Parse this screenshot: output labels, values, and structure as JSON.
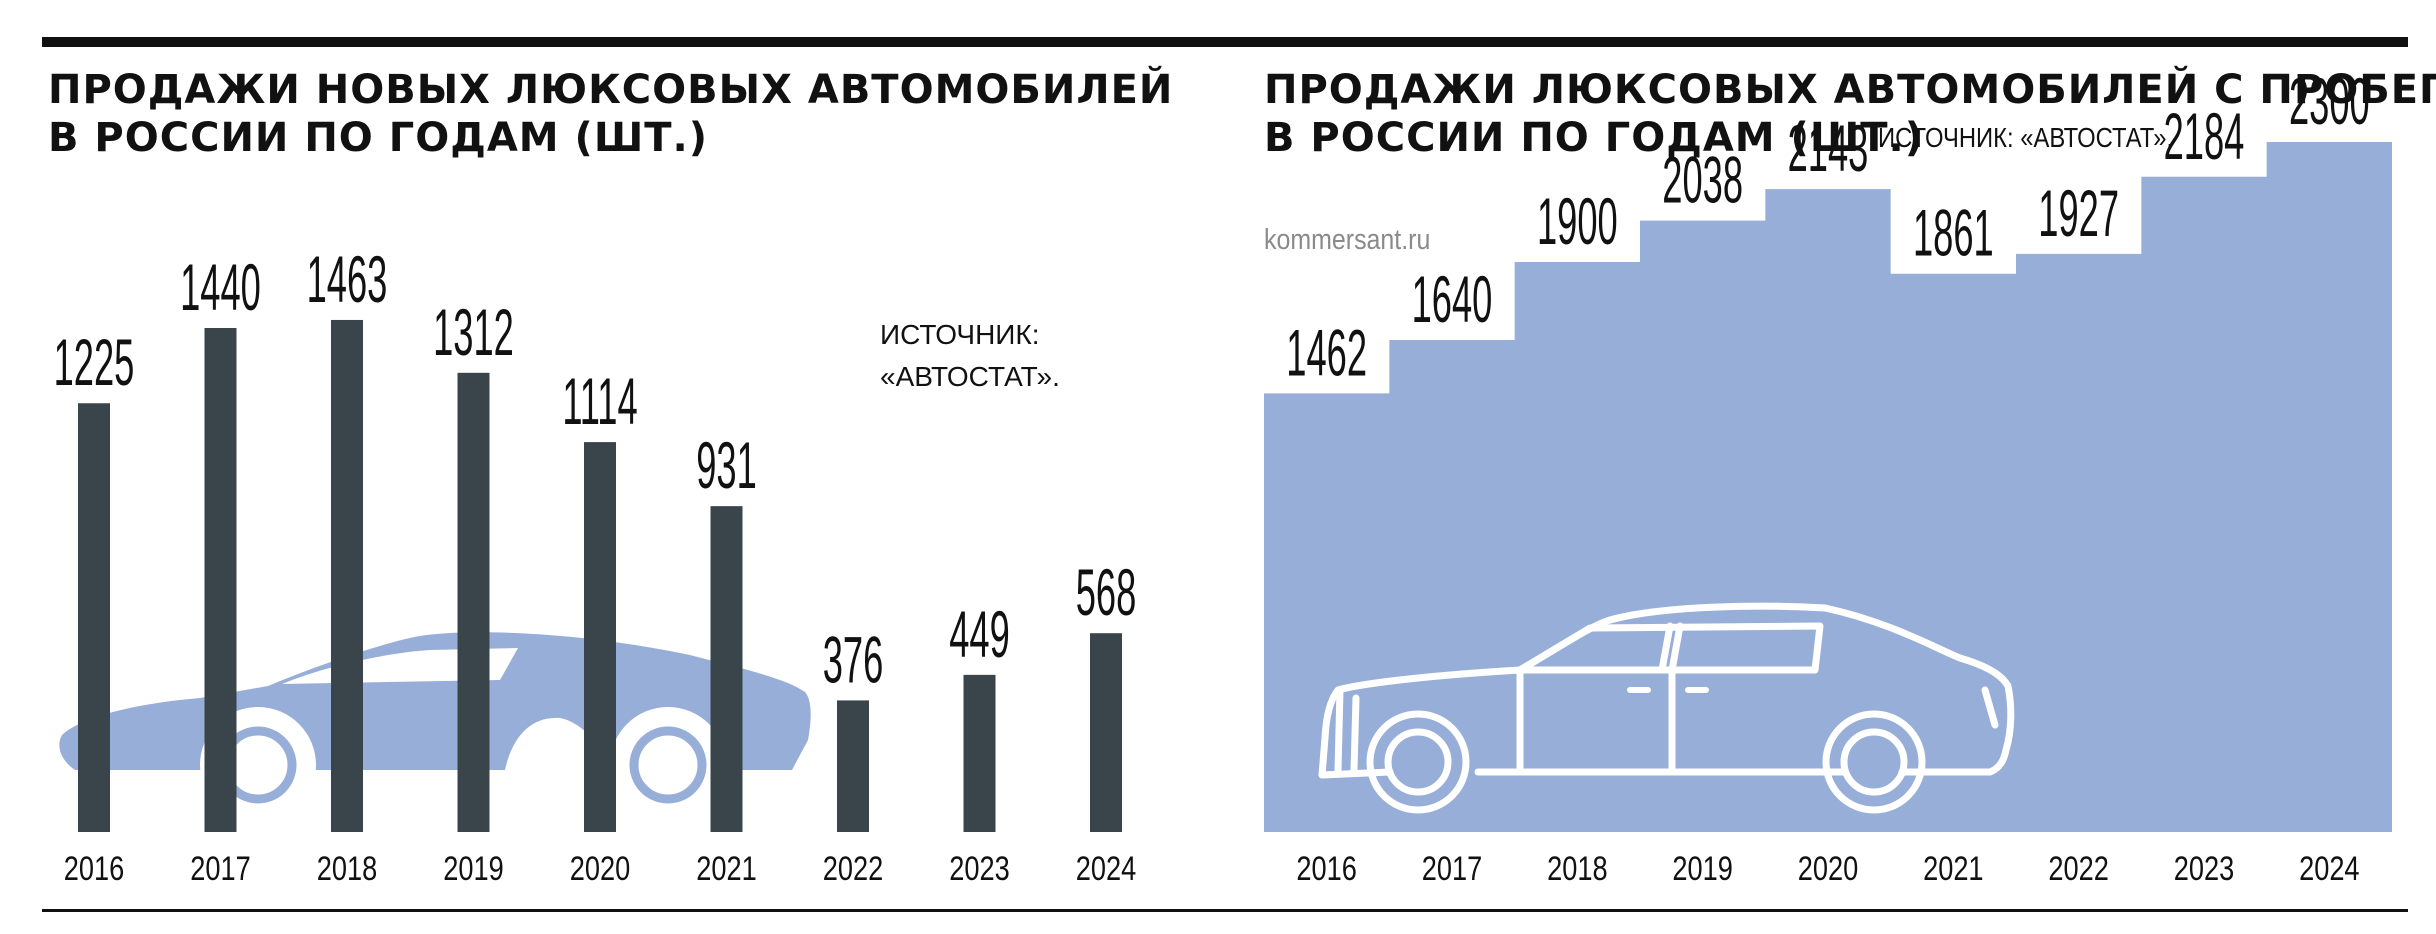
{
  "colors": {
    "bar": "#3a454b",
    "area": "#97aed8",
    "car_fill": "#97aed8",
    "text": "#111111"
  },
  "titles": {
    "left": [
      "ПРОДАЖИ НОВЫХ ЛЮКСОВЫХ АВТОМОБИЛЕЙ",
      "В РОССИИ ПО ГОДАМ (ШТ.)"
    ],
    "right": [
      "ПРОДАЖИ ЛЮКСОВЫХ АВТОМОБИЛЕЙ С ПРОБЕГОМ",
      "В РОССИИ ПО ГОДАМ (ШТ.)"
    ]
  },
  "source_left": [
    "ИСТОЧНИК:",
    "«АВТОСТАТ»."
  ],
  "source_right": "ИСТОЧНИК: «АВТОСТАТ».",
  "watermark": "kommersant.ru",
  "illustrations": {
    "left": "sports-car-silhouette",
    "right": "sedan-outline"
  },
  "chart_data": [
    {
      "type": "bar",
      "title": "ПРОДАЖИ НОВЫХ ЛЮКСОВЫХ АВТОМОБИЛЕЙ В РОССИИ ПО ГОДАМ (ШТ.)",
      "categories": [
        "2016",
        "2017",
        "2018",
        "2019",
        "2020",
        "2021",
        "2022",
        "2023",
        "2024"
      ],
      "values": [
        1225,
        1440,
        1463,
        1312,
        1114,
        931,
        376,
        449,
        568
      ],
      "ylim": [
        0,
        1800
      ],
      "grid": false
    },
    {
      "type": "area",
      "title": "ПРОДАЖИ ЛЮКСОВЫХ АВТОМОБИЛЕЙ С ПРОБЕГОМ В РОССИИ ПО ГОДАМ (ШТ.)",
      "step": true,
      "categories": [
        "2016",
        "2017",
        "2018",
        "2019",
        "2020",
        "2021",
        "2022",
        "2023",
        "2024"
      ],
      "values": [
        1462,
        1640,
        1900,
        2038,
        2143,
        1861,
        1927,
        2184,
        2300
      ],
      "ylim": [
        0,
        2540
      ],
      "grid": false
    }
  ]
}
